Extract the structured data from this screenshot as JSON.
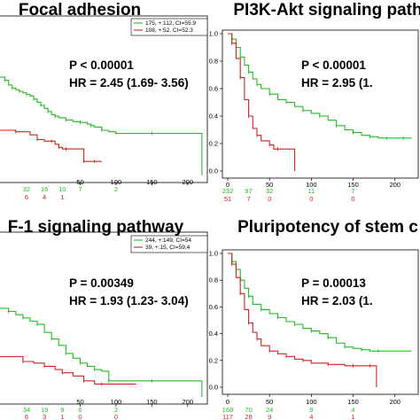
{
  "chart_data": [
    {
      "type": "line",
      "title": "Focal adhesion",
      "p_text": "P < 0.00001",
      "hr_text": "HR = 2.45 (1.69- 3.56)",
      "x_ticks": [
        "50",
        "100",
        "150",
        "200"
      ],
      "y_ticks": [],
      "xlim": [
        -62,
        230
      ],
      "ylim": [
        0,
        1.0
      ],
      "legend": [
        {
          "label": "175, +:112, CI=55.9",
          "color": "#22bb22"
        },
        {
          "label": "108, +:52, CI=52.3",
          "color": "#cc2222"
        }
      ],
      "risk_table": {
        "green": [
          "32",
          "16",
          "10",
          "7",
          "2"
        ],
        "red": [
          "6",
          "4",
          "1",
          "",
          ""
        ],
        "x": [
          -25,
          0,
          25,
          50,
          100
        ]
      },
      "series": [
        {
          "color": "#22bb22",
          "x": [
            -62,
            -55,
            -50,
            -45,
            -40,
            -35,
            -30,
            -25,
            -20,
            -15,
            -10,
            -5,
            0,
            5,
            10,
            15,
            20,
            30,
            40,
            50,
            60,
            65,
            70,
            80,
            90,
            100,
            120,
            150,
            210,
            220
          ],
          "y": [
            0.63,
            0.61,
            0.58,
            0.56,
            0.55,
            0.54,
            0.53,
            0.52,
            0.51,
            0.49,
            0.47,
            0.45,
            0.43,
            0.41,
            0.39,
            0.38,
            0.37,
            0.355,
            0.345,
            0.34,
            0.33,
            0.32,
            0.31,
            0.29,
            0.28,
            0.27,
            0.27,
            0.27,
            0.27,
            0.0
          ]
        },
        {
          "color": "#cc2222",
          "x": [
            -62,
            -40,
            -20,
            -10,
            0,
            10,
            15,
            20,
            25,
            30,
            45,
            55,
            60,
            70,
            80
          ],
          "y": [
            0.29,
            0.28,
            0.26,
            0.23,
            0.22,
            0.22,
            0.2,
            0.18,
            0.17,
            0.17,
            0.17,
            0.09,
            0.09,
            0.09,
            0.09
          ]
        }
      ]
    },
    {
      "type": "line",
      "title": "PI3K-Akt signaling path",
      "p_text": "P < 0.00001",
      "hr_text": "HR = 2.95 (1.",
      "x_ticks": [
        "0",
        "50",
        "100",
        "150",
        "200"
      ],
      "y_ticks": [
        "0.0",
        "0.2",
        "0.4",
        "0.6",
        "0.8",
        "1.0"
      ],
      "xlim": [
        0,
        230
      ],
      "ylim": [
        0,
        1.0
      ],
      "legend": [],
      "risk_table": {
        "green": [
          "232",
          "97",
          "32",
          "11",
          "7"
        ],
        "red": [
          "51",
          "7",
          "0",
          "0",
          "0"
        ],
        "x": [
          0,
          25,
          50,
          100,
          150
        ]
      },
      "series": [
        {
          "color": "#22bb22",
          "x": [
            0,
            5,
            10,
            15,
            20,
            25,
            30,
            35,
            40,
            50,
            60,
            70,
            80,
            90,
            100,
            110,
            120,
            130,
            140,
            150,
            160,
            170,
            180,
            190,
            200,
            210,
            220
          ],
          "y": [
            1.0,
            0.96,
            0.9,
            0.83,
            0.77,
            0.72,
            0.67,
            0.63,
            0.6,
            0.56,
            0.52,
            0.5,
            0.47,
            0.44,
            0.42,
            0.4,
            0.37,
            0.33,
            0.3,
            0.28,
            0.26,
            0.25,
            0.24,
            0.24,
            0.24,
            0.24,
            0.24
          ]
        },
        {
          "color": "#cc2222",
          "x": [
            0,
            5,
            10,
            15,
            20,
            25,
            30,
            35,
            40,
            50,
            55,
            60,
            70,
            80
          ],
          "y": [
            1.0,
            0.93,
            0.82,
            0.68,
            0.52,
            0.4,
            0.31,
            0.26,
            0.22,
            0.19,
            0.16,
            0.16,
            0.16,
            0.0
          ]
        }
      ]
    },
    {
      "type": "line",
      "title": "F-1 signaling pathway",
      "p_text": "P = 0.00349",
      "hr_text": "HR = 1.93 (1.23- 3.04)",
      "x_ticks": [
        "50",
        "100",
        "150",
        "200"
      ],
      "y_ticks": [],
      "xlim": [
        -62,
        230
      ],
      "ylim": [
        0,
        1.0
      ],
      "legend": [
        {
          "label": "244, +:149, CI=54",
          "color": "#22bb22"
        },
        {
          "label": "39, +:15, CI=59.4",
          "color": "#cc2222"
        }
      ],
      "risk_table": {
        "green": [
          "34",
          "19",
          "9",
          "6",
          "2"
        ],
        "red": [
          "6",
          "3",
          "1",
          "0",
          "0"
        ],
        "x": [
          -25,
          0,
          25,
          50,
          100
        ]
      },
      "series": [
        {
          "color": "#22bb22",
          "x": [
            -62,
            -50,
            -40,
            -30,
            -20,
            -10,
            0,
            10,
            20,
            30,
            40,
            50,
            60,
            70,
            80,
            90,
            100,
            150,
            210,
            220
          ],
          "y": [
            0.55,
            0.53,
            0.51,
            0.49,
            0.47,
            0.45,
            0.4,
            0.36,
            0.32,
            0.27,
            0.24,
            0.21,
            0.19,
            0.17,
            0.16,
            0.1,
            0.1,
            0.1,
            0.1,
            0.0
          ]
        },
        {
          "color": "#cc2222",
          "x": [
            -62,
            -30,
            -15,
            0,
            15,
            25,
            40,
            55,
            70,
            80,
            100,
            128
          ],
          "y": [
            0.25,
            0.22,
            0.21,
            0.19,
            0.17,
            0.15,
            0.13,
            0.1,
            0.08,
            0.08,
            0.08,
            0.08
          ]
        }
      ]
    },
    {
      "type": "line",
      "title": "Pluripotency of stem c",
      "p_text": "P = 0.00013",
      "hr_text": "HR = 2.03 (1.",
      "x_ticks": [
        "0",
        "50",
        "100",
        "150",
        "200"
      ],
      "y_ticks": [
        "0.0",
        "0.2",
        "0.4",
        "0.6",
        "0.8",
        "1.0"
      ],
      "xlim": [
        0,
        230
      ],
      "ylim": [
        0,
        1.0
      ],
      "legend": [],
      "risk_table": {
        "green": [
          "168",
          "70",
          "24",
          "9",
          "4"
        ],
        "red": [
          "117",
          "28",
          "9",
          "4",
          "1"
        ],
        "x": [
          0,
          25,
          50,
          100,
          150
        ]
      },
      "series": [
        {
          "color": "#22bb22",
          "x": [
            0,
            5,
            10,
            15,
            20,
            25,
            30,
            40,
            50,
            60,
            70,
            80,
            90,
            100,
            110,
            120,
            130,
            140,
            150,
            160,
            170,
            180,
            200,
            220
          ],
          "y": [
            1.0,
            0.94,
            0.88,
            0.8,
            0.74,
            0.68,
            0.62,
            0.58,
            0.55,
            0.52,
            0.49,
            0.47,
            0.44,
            0.42,
            0.4,
            0.37,
            0.33,
            0.3,
            0.29,
            0.28,
            0.27,
            0.27,
            0.27,
            0.27
          ]
        },
        {
          "color": "#cc2222",
          "x": [
            0,
            5,
            10,
            15,
            20,
            25,
            30,
            35,
            40,
            50,
            60,
            70,
            80,
            90,
            100,
            120,
            140,
            150,
            160,
            170,
            178
          ],
          "y": [
            1.0,
            0.92,
            0.82,
            0.7,
            0.58,
            0.48,
            0.41,
            0.36,
            0.31,
            0.27,
            0.25,
            0.23,
            0.21,
            0.2,
            0.18,
            0.17,
            0.16,
            0.16,
            0.16,
            0.16,
            0.0
          ]
        }
      ]
    }
  ]
}
